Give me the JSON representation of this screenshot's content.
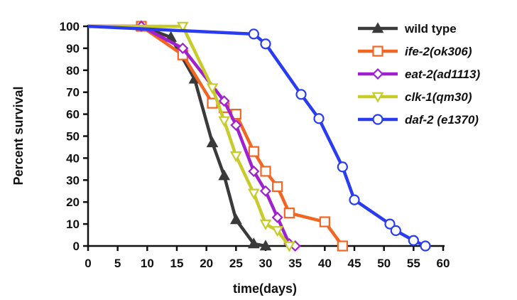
{
  "chart_data": {
    "type": "line",
    "xlabel": "time(days)",
    "ylabel": "Percent survival",
    "xlim": [
      0,
      60
    ],
    "ylim": [
      0,
      100
    ],
    "xticks": [
      0,
      5,
      10,
      15,
      20,
      25,
      30,
      35,
      40,
      45,
      50,
      55,
      60
    ],
    "yticks": [
      0,
      10,
      20,
      30,
      40,
      50,
      60,
      70,
      80,
      90,
      100
    ],
    "grid": false,
    "legend_position": "top-right",
    "series": [
      {
        "name": "wild type",
        "legend_label": "wild type",
        "legend_italic": false,
        "color": "#3a3a3a",
        "marker": "triangle-up",
        "marker_fill": "#3a3a3a",
        "x": [
          0,
          9,
          14,
          18,
          21,
          23,
          25,
          28,
          30
        ],
        "y": [
          100,
          100,
          95,
          76,
          47,
          32,
          12,
          1,
          0
        ]
      },
      {
        "name": "ife-2(ok306)",
        "legend_label": "ife-2(ok306)",
        "legend_italic": true,
        "color": "#f26522",
        "marker": "square",
        "marker_fill": "none",
        "x": [
          0,
          9,
          16,
          21,
          23,
          25,
          28,
          30,
          32,
          34,
          40,
          43
        ],
        "y": [
          100,
          100,
          87,
          65,
          63,
          60,
          43,
          34,
          27,
          15,
          11,
          0
        ]
      },
      {
        "name": "eat-2(ad1113)",
        "legend_label": "eat-2(ad1113)",
        "legend_italic": true,
        "color": "#a020d0",
        "marker": "diamond",
        "marker_fill": "none",
        "x": [
          0,
          9,
          16,
          23,
          25,
          28,
          30,
          32,
          34,
          35
        ],
        "y": [
          100,
          100,
          90,
          66,
          55,
          34,
          25,
          13,
          1,
          0
        ]
      },
      {
        "name": "clk-1(qm30)",
        "legend_label": "clk-1(qm30)",
        "legend_italic": true,
        "color": "#c8cc2a",
        "marker": "triangle-down",
        "marker_fill": "none",
        "x": [
          0,
          16,
          21,
          23,
          25,
          28,
          30,
          32,
          34
        ],
        "y": [
          100,
          100,
          72,
          57,
          41,
          24,
          10,
          7,
          0
        ]
      },
      {
        "name": "daf-2 (e1370)",
        "legend_label": "daf-2 (e1370)",
        "legend_italic": true,
        "color": "#2a3cf0",
        "marker": "circle",
        "marker_fill": "none",
        "x": [
          0,
          28,
          30,
          36,
          39,
          43,
          45,
          51,
          52,
          55,
          57
        ],
        "y": [
          100,
          96.5,
          92,
          69,
          58,
          36,
          21,
          10,
          7,
          2.5,
          0
        ]
      }
    ]
  }
}
